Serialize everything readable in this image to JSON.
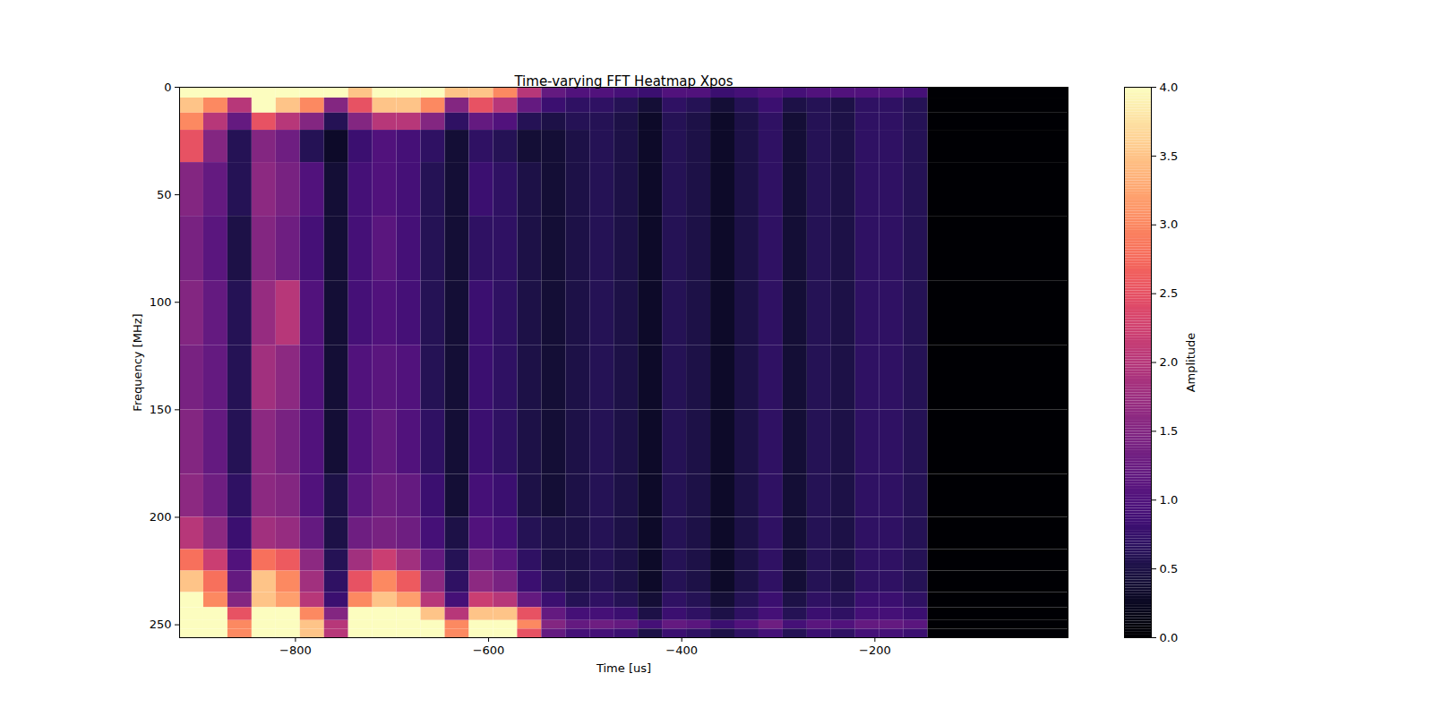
{
  "chart_data": {
    "type": "heatmap",
    "title": "Time-varying FFT Heatmap Xpos",
    "x_label": "Time [us]",
    "y_label": "Frequency [MHz]",
    "color": "magma",
    "xlim": [
      -920,
      0
    ],
    "xticks": [
      {
        "value": -800,
        "label": "−800"
      },
      {
        "value": -600,
        "label": "−600"
      },
      {
        "value": -400,
        "label": "−400"
      },
      {
        "value": -200,
        "label": "−200"
      }
    ],
    "ylim": [
      0,
      256
    ],
    "yticks": [
      0,
      50,
      100,
      150,
      200,
      250
    ],
    "x_edges": [
      -920,
      -895,
      -870,
      -845,
      -820,
      -795,
      -770,
      -745,
      -720,
      -695,
      -670,
      -645,
      -620,
      -595,
      -570,
      -545,
      -520,
      -495,
      -470,
      -445,
      -420,
      -395,
      -370,
      -345,
      -320,
      -295,
      -270,
      -245,
      -220,
      -195,
      -170,
      -145,
      0
    ],
    "y_edges": [
      0,
      5,
      12,
      20,
      35,
      60,
      90,
      120,
      150,
      180,
      200,
      215,
      225,
      235,
      242,
      248,
      252,
      256
    ],
    "cells": [
      [
        4,
        4,
        4,
        4,
        4,
        4,
        4,
        3.5,
        4,
        4,
        4,
        3.5,
        3.5,
        3,
        2,
        1.2,
        1.0,
        1.0,
        0.9,
        0.8,
        1.0,
        1.0,
        0.8,
        0.9,
        1.0,
        0.9,
        1.0,
        1.0,
        1.0,
        1.0,
        0.9,
        0
      ],
      [
        3.5,
        3,
        2,
        4,
        3.5,
        3,
        1.5,
        2.5,
        3.5,
        3.5,
        3,
        1.5,
        2.5,
        2,
        1.2,
        0.8,
        0.7,
        0.7,
        0.6,
        0.4,
        0.7,
        0.6,
        0.4,
        0.6,
        0.8,
        0.5,
        0.6,
        0.5,
        0.7,
        0.7,
        0.6,
        0
      ],
      [
        3,
        2,
        1.2,
        2.5,
        2,
        1.5,
        0.6,
        1.5,
        2,
        2,
        1.5,
        0.7,
        1.2,
        1.0,
        0.6,
        0.5,
        0.6,
        0.6,
        0.5,
        0.3,
        0.6,
        0.5,
        0.3,
        0.5,
        0.7,
        0.4,
        0.6,
        0.5,
        0.7,
        0.7,
        0.6,
        0
      ],
      [
        2.5,
        1.5,
        0.6,
        1.5,
        1.3,
        0.6,
        0.3,
        0.8,
        1.0,
        0.9,
        0.7,
        0.4,
        0.7,
        0.6,
        0.4,
        0.4,
        0.5,
        0.6,
        0.5,
        0.3,
        0.6,
        0.5,
        0.3,
        0.5,
        0.7,
        0.4,
        0.6,
        0.5,
        0.7,
        0.7,
        0.6,
        0
      ],
      [
        1.5,
        1.2,
        0.6,
        1.6,
        1.4,
        1.0,
        0.4,
        0.9,
        1.0,
        0.9,
        0.6,
        0.4,
        0.8,
        0.7,
        0.5,
        0.4,
        0.5,
        0.6,
        0.5,
        0.3,
        0.6,
        0.5,
        0.3,
        0.5,
        0.7,
        0.4,
        0.6,
        0.5,
        0.7,
        0.7,
        0.6,
        0
      ],
      [
        1.4,
        1.1,
        0.5,
        1.5,
        1.3,
        0.9,
        0.4,
        0.9,
        1.1,
        0.9,
        0.6,
        0.4,
        0.7,
        0.7,
        0.5,
        0.4,
        0.5,
        0.6,
        0.5,
        0.3,
        0.6,
        0.5,
        0.3,
        0.5,
        0.7,
        0.4,
        0.6,
        0.5,
        0.7,
        0.7,
        0.6,
        0
      ],
      [
        1.5,
        1.2,
        0.6,
        1.7,
        2.0,
        1.0,
        0.4,
        0.9,
        1.0,
        0.9,
        0.6,
        0.4,
        0.8,
        0.7,
        0.5,
        0.4,
        0.5,
        0.6,
        0.5,
        0.3,
        0.6,
        0.5,
        0.3,
        0.5,
        0.7,
        0.4,
        0.6,
        0.5,
        0.7,
        0.7,
        0.6,
        0
      ],
      [
        1.4,
        1.2,
        0.6,
        1.8,
        1.6,
        1.0,
        0.4,
        1.0,
        1.1,
        1.0,
        0.6,
        0.4,
        0.8,
        0.7,
        0.5,
        0.4,
        0.5,
        0.6,
        0.5,
        0.3,
        0.6,
        0.5,
        0.3,
        0.5,
        0.7,
        0.4,
        0.6,
        0.5,
        0.7,
        0.7,
        0.6,
        0
      ],
      [
        1.5,
        1.2,
        0.6,
        1.6,
        1.4,
        1.0,
        0.4,
        1.0,
        1.2,
        1.0,
        0.7,
        0.4,
        0.8,
        0.7,
        0.5,
        0.4,
        0.5,
        0.6,
        0.5,
        0.3,
        0.6,
        0.5,
        0.3,
        0.5,
        0.7,
        0.4,
        0.6,
        0.5,
        0.7,
        0.7,
        0.6,
        0
      ],
      [
        1.6,
        1.3,
        0.7,
        1.6,
        1.5,
        1.0,
        0.5,
        1.1,
        1.3,
        1.2,
        0.8,
        0.4,
        0.9,
        0.8,
        0.5,
        0.4,
        0.5,
        0.6,
        0.5,
        0.3,
        0.6,
        0.5,
        0.3,
        0.5,
        0.7,
        0.4,
        0.6,
        0.5,
        0.7,
        0.7,
        0.6,
        0
      ],
      [
        2.0,
        1.6,
        0.8,
        1.8,
        1.7,
        1.2,
        0.5,
        1.3,
        1.4,
        1.3,
        0.9,
        0.5,
        1.0,
        0.9,
        0.6,
        0.5,
        0.5,
        0.6,
        0.5,
        0.3,
        0.6,
        0.5,
        0.3,
        0.5,
        0.7,
        0.4,
        0.6,
        0.5,
        0.7,
        0.7,
        0.6,
        0
      ],
      [
        2.8,
        2.2,
        1.0,
        2.8,
        2.6,
        1.6,
        0.6,
        1.8,
        2.2,
        1.8,
        1.2,
        0.6,
        1.3,
        1.1,
        0.7,
        0.5,
        0.5,
        0.6,
        0.5,
        0.3,
        0.6,
        0.5,
        0.3,
        0.5,
        0.7,
        0.4,
        0.6,
        0.5,
        0.7,
        0.7,
        0.6,
        0
      ],
      [
        3.5,
        2.8,
        1.2,
        3.5,
        3.0,
        1.8,
        0.7,
        2.5,
        3.0,
        2.6,
        1.6,
        0.7,
        1.6,
        1.4,
        0.8,
        0.6,
        0.5,
        0.6,
        0.5,
        0.3,
        0.6,
        0.5,
        0.3,
        0.5,
        0.7,
        0.4,
        0.6,
        0.5,
        0.7,
        0.7,
        0.6,
        0
      ],
      [
        4,
        3,
        1.5,
        3.5,
        3.2,
        2,
        0.8,
        3,
        3.5,
        3.2,
        2,
        0.9,
        2.2,
        2,
        1.2,
        0.8,
        0.6,
        0.7,
        0.6,
        0.4,
        0.7,
        0.6,
        0.4,
        0.6,
        0.8,
        0.5,
        0.7,
        0.6,
        0.8,
        0.8,
        0.7,
        0
      ],
      [
        4,
        4,
        2.5,
        4,
        4,
        3,
        1.5,
        4,
        4,
        4,
        3.5,
        2,
        3.5,
        3.5,
        2.5,
        1.2,
        0.9,
        0.9,
        0.8,
        0.5,
        0.8,
        0.7,
        0.5,
        0.7,
        0.9,
        0.6,
        0.8,
        0.7,
        0.9,
        0.9,
        0.8,
        0
      ],
      [
        4,
        4,
        3,
        4,
        4,
        3.5,
        2,
        4,
        4,
        4,
        4,
        3,
        4,
        4,
        3,
        1.5,
        1.2,
        1.3,
        1.2,
        0.9,
        1.2,
        1.1,
        0.8,
        1.0,
        1.3,
        0.9,
        1.1,
        1.0,
        1.2,
        1.2,
        1.1,
        0
      ],
      [
        4,
        4,
        3,
        4,
        4,
        3.5,
        2,
        4,
        4,
        4,
        4,
        3,
        4,
        4,
        2.5,
        1.2,
        0.9,
        0.9,
        0.8,
        0.5,
        0.8,
        0.7,
        0.5,
        0.7,
        0.9,
        0.6,
        0.8,
        0.7,
        0.9,
        0.9,
        0.8,
        0
      ]
    ],
    "colorbar": {
      "label": "Amplitude",
      "range": [
        0,
        4
      ],
      "ticks": [
        {
          "value": 0,
          "label": "0.0"
        },
        {
          "value": 0.5,
          "label": "0.5"
        },
        {
          "value": 1,
          "label": "1.0"
        },
        {
          "value": 1.5,
          "label": "1.5"
        },
        {
          "value": 2,
          "label": "2.0"
        },
        {
          "value": 2.5,
          "label": "2.5"
        },
        {
          "value": 3,
          "label": "3.0"
        },
        {
          "value": 3.5,
          "label": "3.5"
        },
        {
          "value": 4,
          "label": "4.0"
        }
      ]
    }
  }
}
